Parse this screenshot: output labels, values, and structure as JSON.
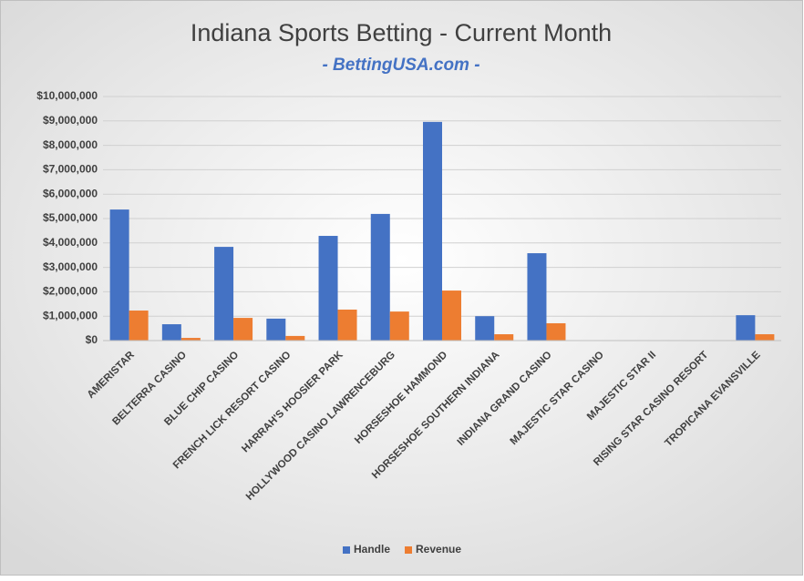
{
  "chart_data": {
    "type": "bar",
    "title": "Indiana Sports Betting - Current Month",
    "subtitle": "- BettingUSA.com -",
    "categories": [
      "AMERISTAR",
      "BELTERRA CASINO",
      "BLUE CHIP CASINO",
      "FRENCH LICK RESORT CASINO",
      "HARRAH'S HOOSIER PARK",
      "HOLLYWOOD CASINO LAWRENCEBURG",
      "HORSESHOE HAMMOND",
      "HORSESHOE SOUTHERN INDIANA",
      "INDIANA GRAND CASINO",
      "MAJESTIC STAR CASINO",
      "MAJESTIC STAR II",
      "RISING STAR CASINO RESORT",
      "TROPICANA EVANSVILLE"
    ],
    "series": [
      {
        "name": "Handle",
        "color": "#4472c4",
        "values": [
          5370000,
          670000,
          3840000,
          900000,
          4290000,
          5190000,
          8960000,
          1000000,
          3580000,
          0,
          0,
          0,
          1040000
        ]
      },
      {
        "name": "Revenue",
        "color": "#ed7d31",
        "values": [
          1230000,
          110000,
          930000,
          190000,
          1270000,
          1190000,
          2050000,
          260000,
          710000,
          0,
          0,
          0,
          260000
        ]
      }
    ],
    "ylim": [
      0,
      10000000
    ],
    "yticks": [
      {
        "value": 0,
        "label": "$0"
      },
      {
        "value": 1000000,
        "label": "$1,000,000"
      },
      {
        "value": 2000000,
        "label": "$2,000,000"
      },
      {
        "value": 3000000,
        "label": "$3,000,000"
      },
      {
        "value": 4000000,
        "label": "$4,000,000"
      },
      {
        "value": 5000000,
        "label": "$5,000,000"
      },
      {
        "value": 6000000,
        "label": "$6,000,000"
      },
      {
        "value": 7000000,
        "label": "$7,000,000"
      },
      {
        "value": 8000000,
        "label": "$8,000,000"
      },
      {
        "value": 9000000,
        "label": "$9,000,000"
      },
      {
        "value": 10000000,
        "label": "$10,000,000"
      }
    ],
    "grid": true,
    "legend": "bottom"
  }
}
